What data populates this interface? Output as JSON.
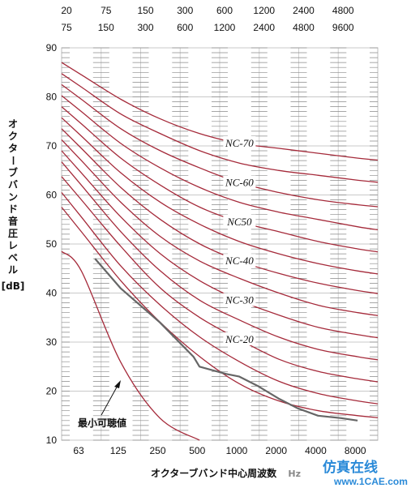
{
  "chart_data": {
    "type": "line",
    "top_band_pairs": [
      {
        "low": "20",
        "high": "75"
      },
      {
        "low": "75",
        "high": "150"
      },
      {
        "low": "150",
        "high": "300"
      },
      {
        "low": "300",
        "high": "600"
      },
      {
        "low": "600",
        "high": "1200"
      },
      {
        "low": "1200",
        "high": "2400"
      },
      {
        "low": "2400",
        "high": "4800"
      },
      {
        "low": "4800",
        "high": "9600"
      }
    ],
    "categories": [
      "63",
      "125",
      "250",
      "500",
      "1000",
      "2000",
      "4000",
      "8000"
    ],
    "xlabel": "オクターブバンド中心周波数",
    "xunit": "Hz",
    "ylabel": "オクターブバンド音圧レベル",
    "yunit": "[dB]",
    "ylim": [
      10,
      90
    ],
    "yticks": [
      10,
      20,
      30,
      40,
      50,
      60,
      70,
      80,
      90
    ],
    "curve_color": "#a52a3a",
    "nc_curves": [
      {
        "values": [
          84.5,
          79.5,
          75.5,
          72.5,
          70.5,
          69.5,
          68.5,
          67.5
        ],
        "name": "NC-70",
        "label_at": 4
      },
      {
        "values": [
          82,
          76.5,
          72.5,
          69,
          66.5,
          65,
          64,
          63
        ],
        "name": "",
        "label_at": -1
      },
      {
        "values": [
          79.5,
          73.5,
          69,
          65.5,
          62.5,
          60.5,
          59,
          58
        ],
        "name": "NC-60",
        "label_at": 4
      },
      {
        "values": [
          77,
          70.5,
          65.5,
          61.5,
          58.5,
          56.5,
          55,
          53.5
        ],
        "name": "",
        "label_at": -1
      },
      {
        "values": [
          74.5,
          67.5,
          62,
          57.5,
          54.5,
          52.5,
          50.5,
          49
        ],
        "name": "NC50",
        "label_at": 4
      },
      {
        "values": [
          72,
          64.5,
          58.5,
          54,
          50.5,
          48,
          46,
          44.5
        ],
        "name": "",
        "label_at": -1
      },
      {
        "values": [
          69.5,
          61.5,
          55,
          50,
          46.5,
          44,
          42,
          40.5
        ],
        "name": "NC-40",
        "label_at": 4
      },
      {
        "values": [
          67,
          58.5,
          51.5,
          46.5,
          43,
          40,
          37.5,
          36
        ],
        "name": "",
        "label_at": -1
      },
      {
        "values": [
          64.5,
          55.5,
          48,
          42.5,
          38.5,
          35.5,
          33,
          31.5
        ],
        "name": "NC-30",
        "label_at": 4
      },
      {
        "values": [
          62,
          52.5,
          44.5,
          38.5,
          34.5,
          31,
          28.5,
          27
        ],
        "name": "",
        "label_at": -1
      },
      {
        "values": [
          59,
          49.5,
          41,
          35,
          30.5,
          26.5,
          24,
          22.5
        ],
        "name": "NC-20",
        "label_at": 4
      },
      {
        "values": [
          55.5,
          45.5,
          37.5,
          31,
          26,
          22,
          19.5,
          18
        ],
        "name": "",
        "label_at": -1
      },
      {
        "values": [
          52.5,
          42.5,
          34,
          27,
          21.5,
          18,
          16,
          15
        ],
        "name": "",
        "label_at": -1
      }
    ],
    "threshold_curve": {
      "x": [
        63,
        125,
        250,
        500
      ],
      "values": [
        44.5,
        26,
        14.5,
        10
      ],
      "name": "最小可聴値"
    },
    "measured_curve": {
      "color": "#666666",
      "x": [
        80,
        125,
        250,
        450,
        500,
        800,
        1000,
        1400,
        2000,
        2800,
        4000,
        6000,
        8000
      ],
      "values": [
        47,
        41,
        34,
        27,
        25,
        23.5,
        23,
        21,
        18.5,
        16.5,
        15,
        14.5,
        14
      ]
    },
    "grid": true
  },
  "watermark": {
    "text": "仿真在线",
    "url": "www.1CAE.com"
  }
}
